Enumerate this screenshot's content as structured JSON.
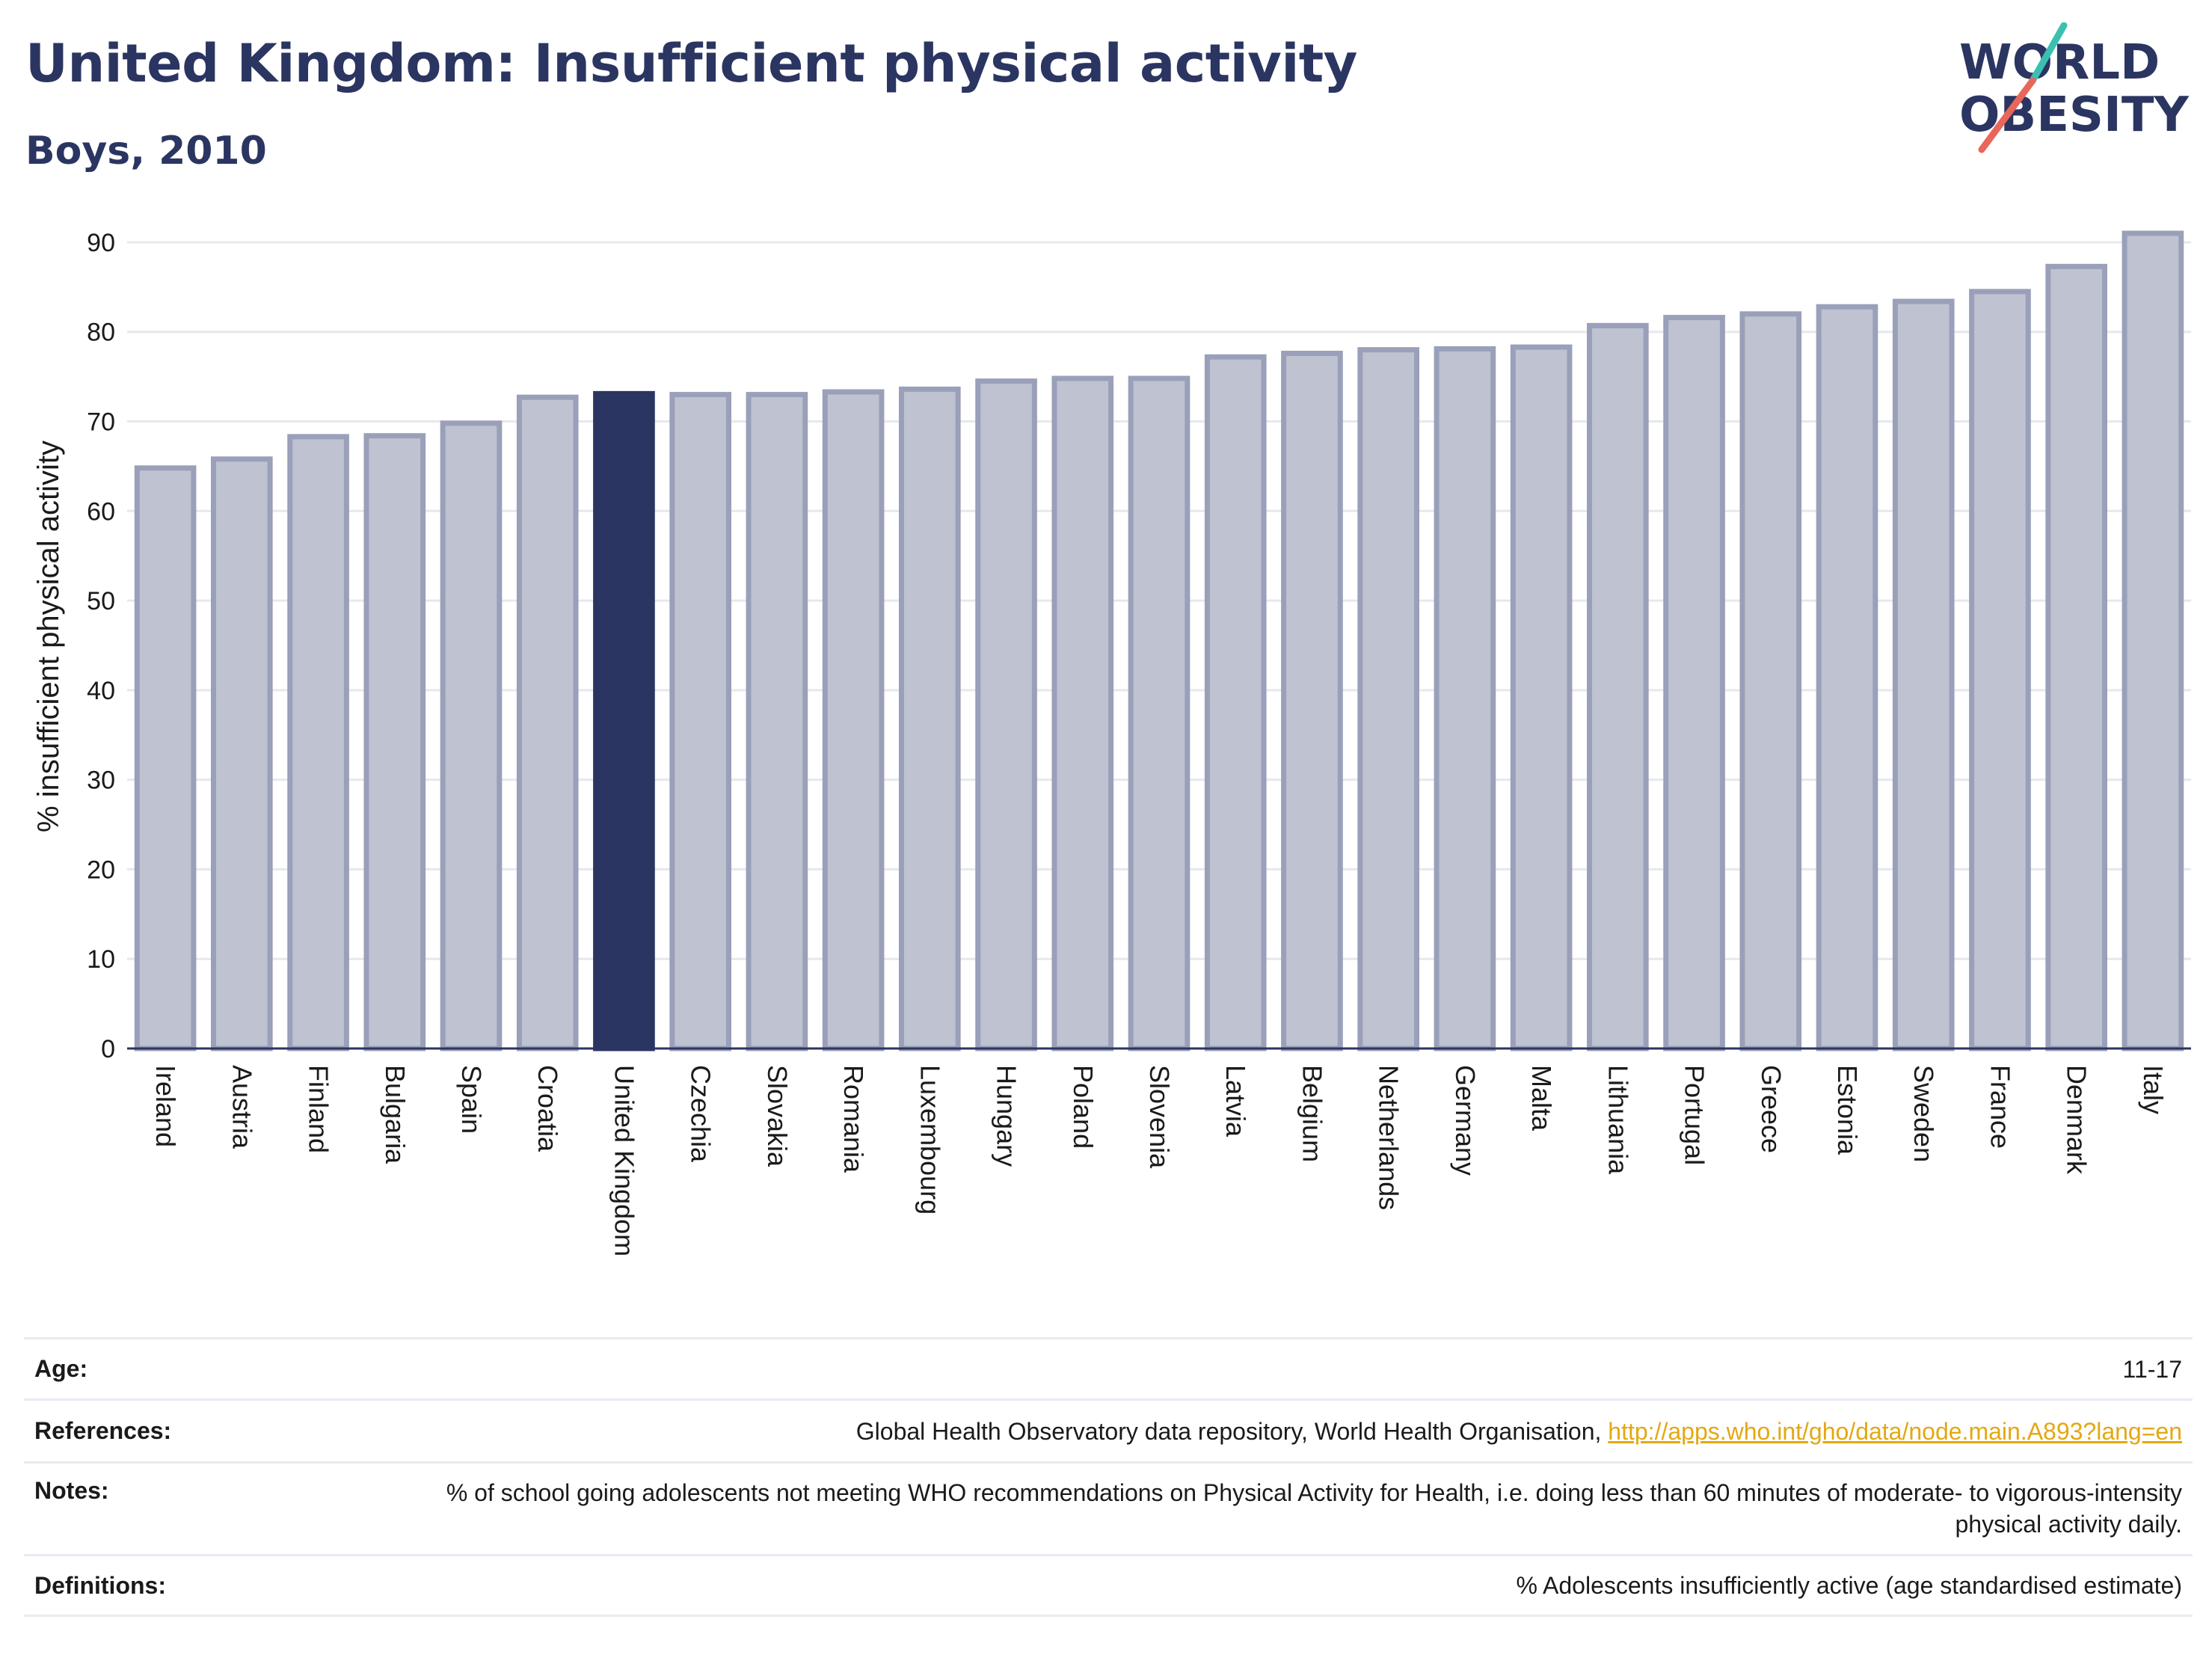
{
  "header": {
    "title": "United Kingdom: Insufficient physical activity",
    "subtitle": "Boys, 2010"
  },
  "logo": {
    "line1": "WORLD",
    "line2": "OBESITY",
    "accent_teal": "#3bbfb0",
    "accent_red": "#e8665a"
  },
  "colors": {
    "highlight": "#2b3561",
    "bar_fill": "#bfc2d0",
    "bar_stroke": "#9aa0b9",
    "text": "#1a1a1a",
    "title": "#2b3561"
  },
  "chart_data": {
    "type": "bar",
    "ylabel": "% insufficient physical activity",
    "ylim": [
      0,
      92
    ],
    "yticks": [
      0,
      10,
      20,
      30,
      40,
      50,
      60,
      70,
      80,
      90
    ],
    "grid": true,
    "highlight": "United Kingdom",
    "categories": [
      "Ireland",
      "Austria",
      "Finland",
      "Bulgaria",
      "Spain",
      "Croatia",
      "United Kingdom",
      "Czechia",
      "Slovakia",
      "Romania",
      "Luxembourg",
      "Hungary",
      "Poland",
      "Slovenia",
      "Latvia",
      "Belgium",
      "Netherlands",
      "Germany",
      "Malta",
      "Lithuania",
      "Portugal",
      "Greece",
      "Estonia",
      "Sweden",
      "France",
      "Denmark",
      "Italy"
    ],
    "values": [
      64.8,
      65.8,
      68.3,
      68.4,
      69.8,
      72.7,
      73.1,
      73.0,
      73.0,
      73.3,
      73.6,
      74.5,
      74.8,
      74.8,
      77.2,
      77.6,
      78.0,
      78.1,
      78.3,
      80.7,
      81.6,
      82.0,
      82.8,
      83.4,
      84.5,
      87.3,
      91.0
    ]
  },
  "meta": {
    "age_label": "Age:",
    "age_value": "11-17",
    "references_label": "References:",
    "references_text": "Global Health Observatory data repository, World Health Organisation, ",
    "references_link": "http://apps.who.int/gho/data/node.main.A893?lang=en",
    "notes_label": "Notes:",
    "notes_value": "% of school going adolescents not meeting WHO recommendations on Physical Activity for Health, i.e. doing less than 60 minutes of moderate- to vigorous-intensity physical activity daily.",
    "definitions_label": "Definitions:",
    "definitions_value": "% Adolescents insufficiently active (age standardised estimate)"
  }
}
